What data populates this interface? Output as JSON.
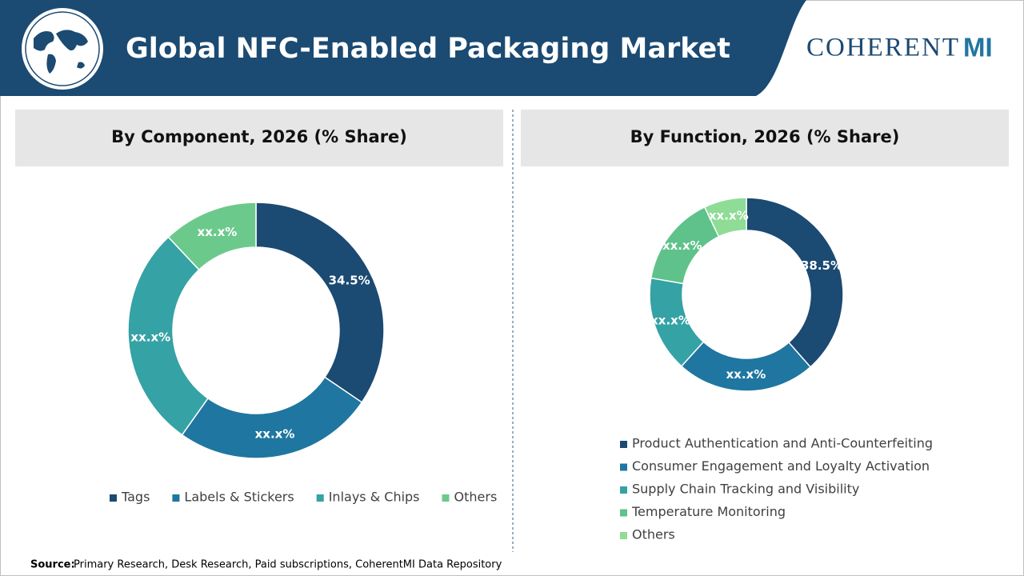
{
  "header": {
    "title": "Global NFC-Enabled Packaging Market",
    "logo_main": "COHERENT",
    "logo_suffix": "MI"
  },
  "chart_data": [
    {
      "type": "donut",
      "title": "By Component, 2026 (% Share)",
      "categories": [
        "Tags",
        "Labels & Stickers",
        "Inlays & Chips",
        "Others"
      ],
      "values": [
        34.5,
        25.3,
        28.2,
        12.0
      ],
      "value_labels": [
        "34.5%",
        "xx.x%",
        "xx.x%",
        "xx.x%"
      ],
      "colors": [
        "#1b4a72",
        "#1f76a0",
        "#35a2a5",
        "#6cc98c"
      ],
      "legend": "bottom",
      "legend_orientation": "horizontal"
    },
    {
      "type": "donut",
      "title": "By Function, 2026 (% Share)",
      "categories": [
        "Product Authentication and Anti-Counterfeiting",
        "Consumer Engagement and Loyalty Activation",
        "Supply Chain Tracking and Visibility",
        "Temperature Monitoring",
        "Others"
      ],
      "values": [
        38.5,
        23.2,
        16.0,
        15.2,
        7.1
      ],
      "value_labels": [
        "38.5%",
        "xx.x%",
        "xx.x%",
        "xx.x%",
        "xx.x%"
      ],
      "colors": [
        "#1b4a72",
        "#1f76a0",
        "#35a2a5",
        "#5ec28a",
        "#8edc95"
      ],
      "legend": "bottom",
      "legend_orientation": "vertical"
    }
  ],
  "source": {
    "label": "Source:",
    "text": "Primary Research, Desk Research, Paid subscriptions, CoherentMI Data Repository"
  }
}
